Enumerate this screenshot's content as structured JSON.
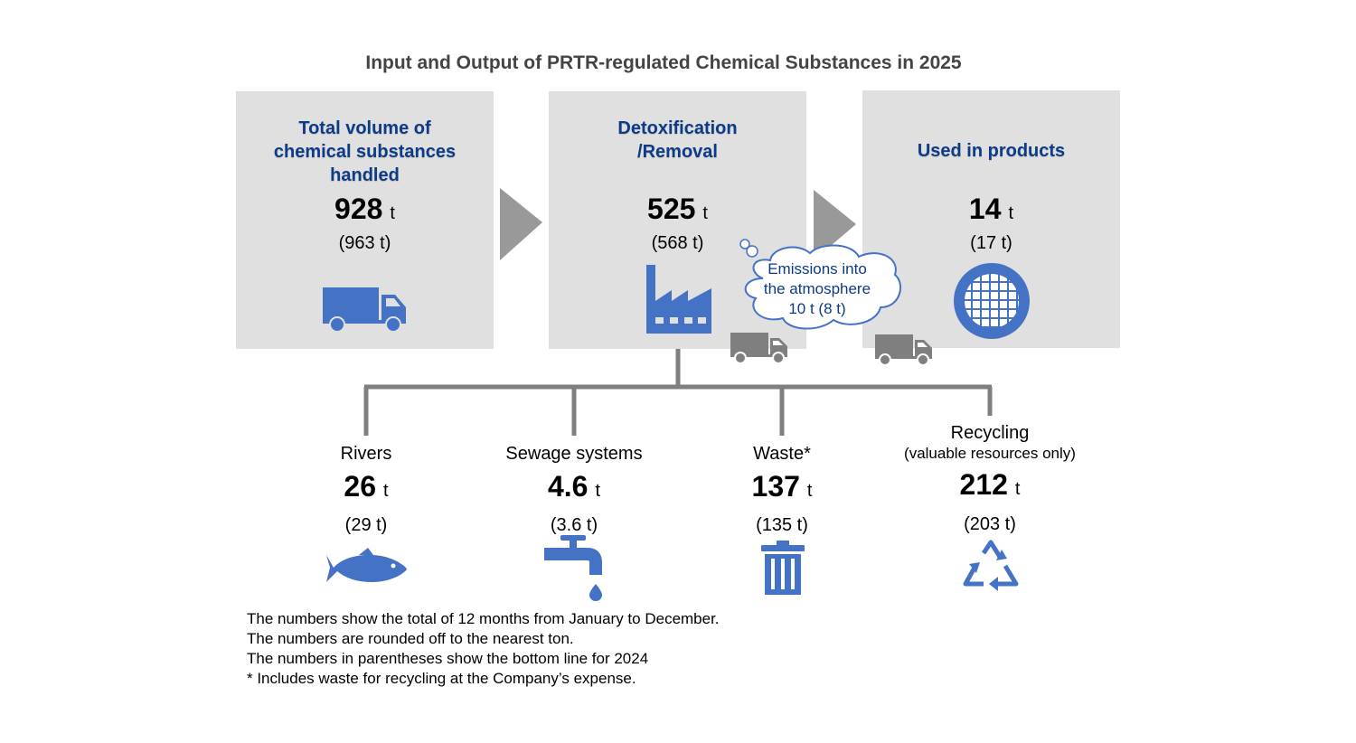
{
  "title": "Input and Output of PRTR-regulated Chemical Substances in 2025",
  "boxes": [
    {
      "title_lines": [
        "Total volume of",
        "chemical substances",
        "handled"
      ],
      "value": "928",
      "unit": "t",
      "previous": "(963 t)",
      "icon": "truck-icon"
    },
    {
      "title_lines": [
        "Detoxification",
        "/Removal"
      ],
      "value": "525",
      "unit": "t",
      "previous": "(568 t)",
      "icon": "factory-icon"
    },
    {
      "title_lines": [
        "Used in products"
      ],
      "value": "14",
      "unit": "t",
      "previous": "(17 t)",
      "icon": "wafer-icon"
    }
  ],
  "emissions_bubble": {
    "lines": [
      "Emissions into",
      "the atmosphere",
      "10 t (8 t)"
    ]
  },
  "outputs": [
    {
      "label": "Rivers",
      "value": "26",
      "unit": "t",
      "previous": "(29 t)",
      "icon": "fish-icon"
    },
    {
      "label": "Sewage systems",
      "value": "4.6",
      "unit": "t",
      "previous": "(3.6 t)",
      "icon": "faucet-icon"
    },
    {
      "label": "Waste*",
      "value": "137",
      "unit": "t",
      "previous": "(135 t)",
      "icon": "trash-icon"
    },
    {
      "label": "Recycling",
      "sublabel": "(valuable resources only)",
      "value": "212",
      "unit": "t",
      "previous": "(203 t)",
      "icon": "recycle-icon"
    }
  ],
  "notes": [
    "The numbers show the total of 12 months from January to December.",
    "The numbers are rounded off to the nearest ton.",
    "The numbers in parentheses show the bottom line for 2024",
    "* Includes waste for recycling at the Company’s expense."
  ],
  "colors": {
    "icon_blue": "#4472c4",
    "title_blue": "#0d3b87",
    "box_gray": "#e0e0e0",
    "connector_gray": "#7f7f7f"
  }
}
